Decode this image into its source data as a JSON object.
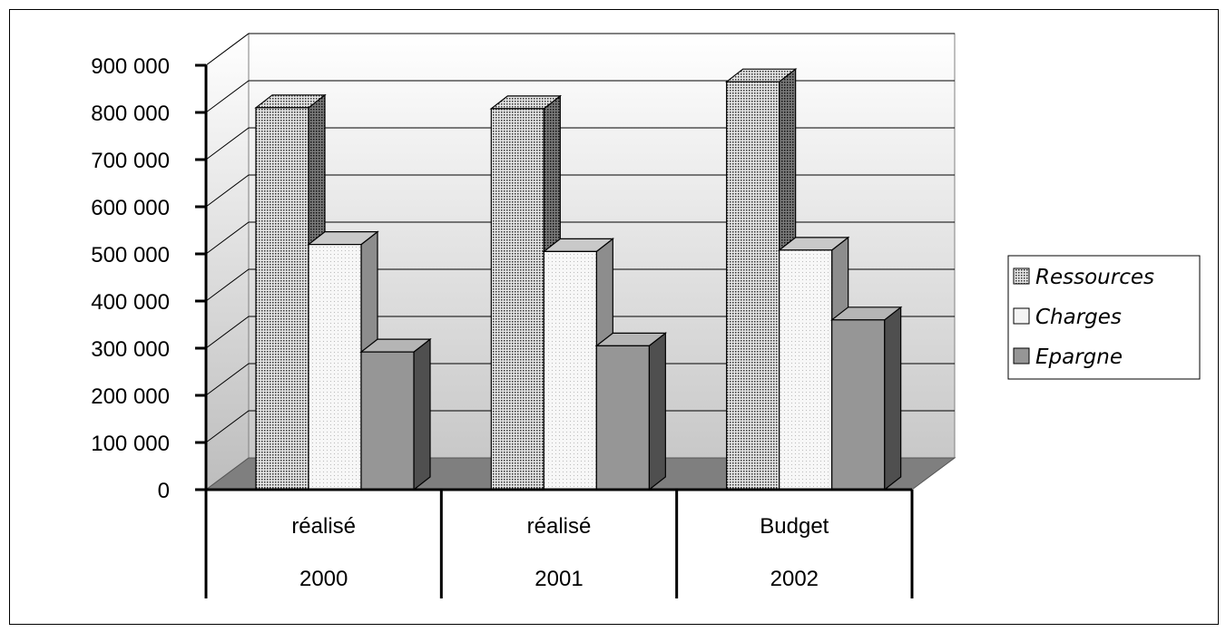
{
  "chart_data": {
    "type": "bar",
    "subtype": "3d-clustered",
    "title": "",
    "xlabel": "",
    "ylabel": "",
    "categories": [
      {
        "line1": "réalisé",
        "line2": "2000"
      },
      {
        "line1": "réalisé",
        "line2": "2001"
      },
      {
        "line1": "Budget",
        "line2": "2002"
      }
    ],
    "series": [
      {
        "name": "Ressources",
        "values": [
          810000,
          808000,
          865000
        ],
        "pattern": "dense-dots"
      },
      {
        "name": "Charges",
        "values": [
          520000,
          505000,
          508000
        ],
        "pattern": "light-dots"
      },
      {
        "name": "Epargne",
        "values": [
          292000,
          305000,
          360000
        ],
        "pattern": "solid-gray"
      }
    ],
    "ylim": [
      0,
      900000
    ],
    "yticks": [
      0,
      100000,
      200000,
      300000,
      400000,
      500000,
      600000,
      700000,
      800000,
      900000
    ],
    "ytick_labels": [
      "0",
      "100 000",
      "200 000",
      "300 000",
      "400 000",
      "500 000",
      "600 000",
      "700 000",
      "800 000",
      "900 000"
    ],
    "grid": true,
    "legend_position": "right",
    "colors": {
      "floor": "#7f7f7f",
      "wall_top": "#ffffff",
      "wall_bottom": "#c8c8c8",
      "ressources": "#bdbdbd",
      "charges": "#f4f4f4",
      "epargne": "#969696"
    }
  }
}
